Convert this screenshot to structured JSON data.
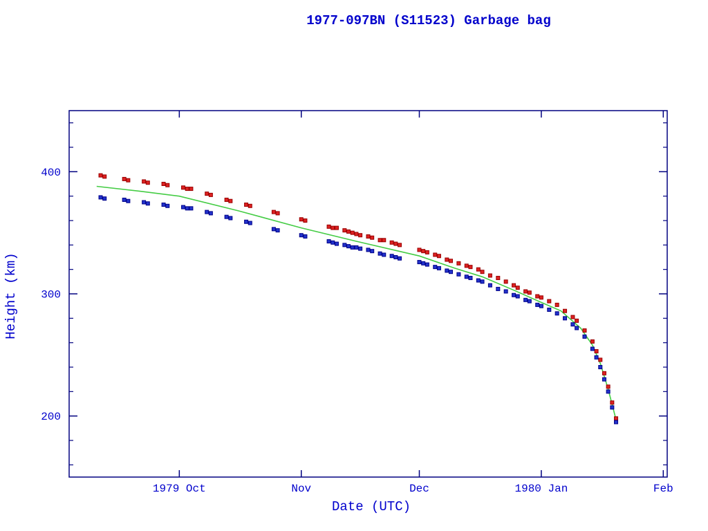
{
  "colors": {
    "background": "#ffffff",
    "frame": "#000080",
    "text": "#0000cc",
    "apogee_fill": "#dd2222",
    "apogee_stroke": "#990000",
    "perigee_fill": "#2233cc",
    "perigee_stroke": "#000088",
    "mean_line": "#44cc44"
  },
  "chart_data": {
    "type": "scatter",
    "title": "1977-097BN (S11523) Garbage bag",
    "xlabel": "Date (UTC)",
    "ylabel": "Height (km)",
    "x_unit": "days since 1979-09-01",
    "xlim": [
      2,
      154
    ],
    "ylim": [
      150,
      450
    ],
    "grid": false,
    "legend": "none",
    "x_ticks": [
      {
        "t": 30,
        "label": "1979 Oct"
      },
      {
        "t": 61,
        "label": "Nov"
      },
      {
        "t": 91,
        "label": "Dec"
      },
      {
        "t": 122,
        "label": "1980 Jan"
      },
      {
        "t": 153,
        "label": "Feb"
      }
    ],
    "y_ticks": [
      {
        "v": 200,
        "label": "200"
      },
      {
        "v": 300,
        "label": "300"
      },
      {
        "v": 400,
        "label": "400"
      }
    ],
    "y_minor_ticks": [
      160,
      180,
      220,
      240,
      260,
      280,
      320,
      340,
      360,
      380,
      420,
      440
    ],
    "series": [
      {
        "name": "apogee height (red squares)",
        "marker": "square",
        "points": [
          [
            10,
            397
          ],
          [
            11,
            396
          ],
          [
            16,
            394
          ],
          [
            17,
            393
          ],
          [
            21,
            392
          ],
          [
            22,
            391
          ],
          [
            26,
            390
          ],
          [
            27,
            389
          ],
          [
            31,
            387
          ],
          [
            32,
            386
          ],
          [
            33,
            386
          ],
          [
            37,
            382
          ],
          [
            38,
            381
          ],
          [
            42,
            377
          ],
          [
            43,
            376
          ],
          [
            47,
            373
          ],
          [
            48,
            372
          ],
          [
            54,
            367
          ],
          [
            55,
            366
          ],
          [
            61,
            361
          ],
          [
            62,
            360
          ],
          [
            68,
            355
          ],
          [
            69,
            354
          ],
          [
            70,
            354
          ],
          [
            72,
            352
          ],
          [
            73,
            351
          ],
          [
            74,
            350
          ],
          [
            75,
            349
          ],
          [
            76,
            348
          ],
          [
            78,
            347
          ],
          [
            79,
            346
          ],
          [
            81,
            344
          ],
          [
            82,
            344
          ],
          [
            84,
            342
          ],
          [
            85,
            341
          ],
          [
            86,
            340
          ],
          [
            91,
            336
          ],
          [
            92,
            335
          ],
          [
            93,
            334
          ],
          [
            95,
            332
          ],
          [
            96,
            331
          ],
          [
            98,
            328
          ],
          [
            99,
            327
          ],
          [
            101,
            325
          ],
          [
            103,
            323
          ],
          [
            104,
            322
          ],
          [
            106,
            320
          ],
          [
            107,
            318
          ],
          [
            109,
            315
          ],
          [
            111,
            313
          ],
          [
            113,
            310
          ],
          [
            115,
            307
          ],
          [
            116,
            305
          ],
          [
            118,
            302
          ],
          [
            119,
            301
          ],
          [
            121,
            298
          ],
          [
            122,
            297
          ],
          [
            124,
            294
          ],
          [
            126,
            291
          ],
          [
            128,
            286
          ],
          [
            130,
            281
          ],
          [
            131,
            278
          ],
          [
            133,
            270
          ],
          [
            135,
            261
          ],
          [
            136,
            253
          ],
          [
            137,
            246
          ],
          [
            138,
            235
          ],
          [
            139,
            224
          ],
          [
            140,
            211
          ],
          [
            141,
            198
          ]
        ]
      },
      {
        "name": "perigee height (blue squares)",
        "marker": "square",
        "points": [
          [
            10,
            379
          ],
          [
            11,
            378
          ],
          [
            16,
            377
          ],
          [
            17,
            376
          ],
          [
            21,
            375
          ],
          [
            22,
            374
          ],
          [
            26,
            373
          ],
          [
            27,
            372
          ],
          [
            31,
            371
          ],
          [
            32,
            370
          ],
          [
            33,
            370
          ],
          [
            37,
            367
          ],
          [
            38,
            366
          ],
          [
            42,
            363
          ],
          [
            43,
            362
          ],
          [
            47,
            359
          ],
          [
            48,
            358
          ],
          [
            54,
            353
          ],
          [
            55,
            352
          ],
          [
            61,
            348
          ],
          [
            62,
            347
          ],
          [
            68,
            343
          ],
          [
            69,
            342
          ],
          [
            70,
            341
          ],
          [
            72,
            340
          ],
          [
            73,
            339
          ],
          [
            74,
            338
          ],
          [
            75,
            338
          ],
          [
            76,
            337
          ],
          [
            78,
            336
          ],
          [
            79,
            335
          ],
          [
            81,
            333
          ],
          [
            82,
            332
          ],
          [
            84,
            331
          ],
          [
            85,
            330
          ],
          [
            86,
            329
          ],
          [
            91,
            326
          ],
          [
            92,
            325
          ],
          [
            93,
            324
          ],
          [
            95,
            322
          ],
          [
            96,
            321
          ],
          [
            98,
            319
          ],
          [
            99,
            318
          ],
          [
            101,
            316
          ],
          [
            103,
            314
          ],
          [
            104,
            313
          ],
          [
            106,
            311
          ],
          [
            107,
            310
          ],
          [
            109,
            307
          ],
          [
            111,
            304
          ],
          [
            113,
            302
          ],
          [
            115,
            299
          ],
          [
            116,
            298
          ],
          [
            118,
            295
          ],
          [
            119,
            294
          ],
          [
            121,
            291
          ],
          [
            122,
            290
          ],
          [
            124,
            287
          ],
          [
            126,
            284
          ],
          [
            128,
            280
          ],
          [
            130,
            275
          ],
          [
            131,
            272
          ],
          [
            133,
            265
          ],
          [
            135,
            255
          ],
          [
            136,
            248
          ],
          [
            137,
            240
          ],
          [
            138,
            230
          ],
          [
            139,
            220
          ],
          [
            140,
            207
          ],
          [
            141,
            195
          ]
        ]
      },
      {
        "name": "mean height (green line)",
        "marker": "line",
        "points": [
          [
            9,
            388
          ],
          [
            20,
            384
          ],
          [
            30,
            380
          ],
          [
            45,
            368
          ],
          [
            61,
            354
          ],
          [
            75,
            343
          ],
          [
            91,
            331
          ],
          [
            100,
            321
          ],
          [
            107,
            314
          ],
          [
            115,
            303
          ],
          [
            122,
            293
          ],
          [
            127,
            286
          ],
          [
            132,
            272
          ],
          [
            135,
            258
          ],
          [
            137,
            243
          ],
          [
            139,
            222
          ],
          [
            141,
            197
          ]
        ]
      }
    ]
  }
}
